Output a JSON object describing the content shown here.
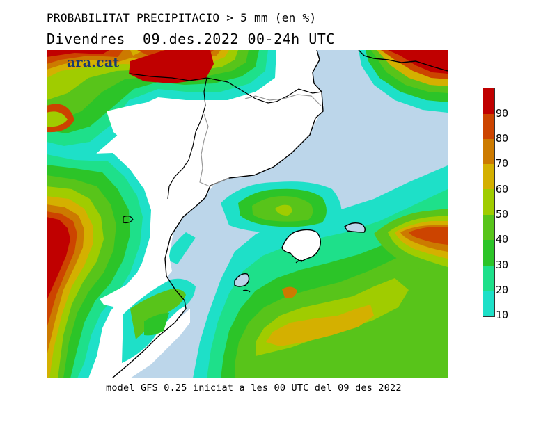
{
  "title": {
    "line1": "PROBABILITAT PRECIPITACIO > 5 mm (en %)",
    "line2": "Divendres  09.des.2022 00-24h UTC"
  },
  "footer": "model GFS 0.25 iniciat a les 00 UTC del 09 des 2022",
  "map": {
    "logo_text": "ara.cat",
    "sea_color": "#bcd6ea",
    "land_color": "#ffffff"
  },
  "legend": {
    "levels": [
      {
        "label": "90",
        "color": "#c00000"
      },
      {
        "label": "80",
        "color": "#cc4400"
      },
      {
        "label": "70",
        "color": "#cc7a00"
      },
      {
        "label": "60",
        "color": "#d4b000"
      },
      {
        "label": "50",
        "color": "#a0cc00"
      },
      {
        "label": "40",
        "color": "#58c41a"
      },
      {
        "label": "30",
        "color": "#2cc428"
      },
      {
        "label": "20",
        "color": "#1ee08a"
      },
      {
        "label": "10",
        "color": "#1ee0c8"
      }
    ]
  }
}
